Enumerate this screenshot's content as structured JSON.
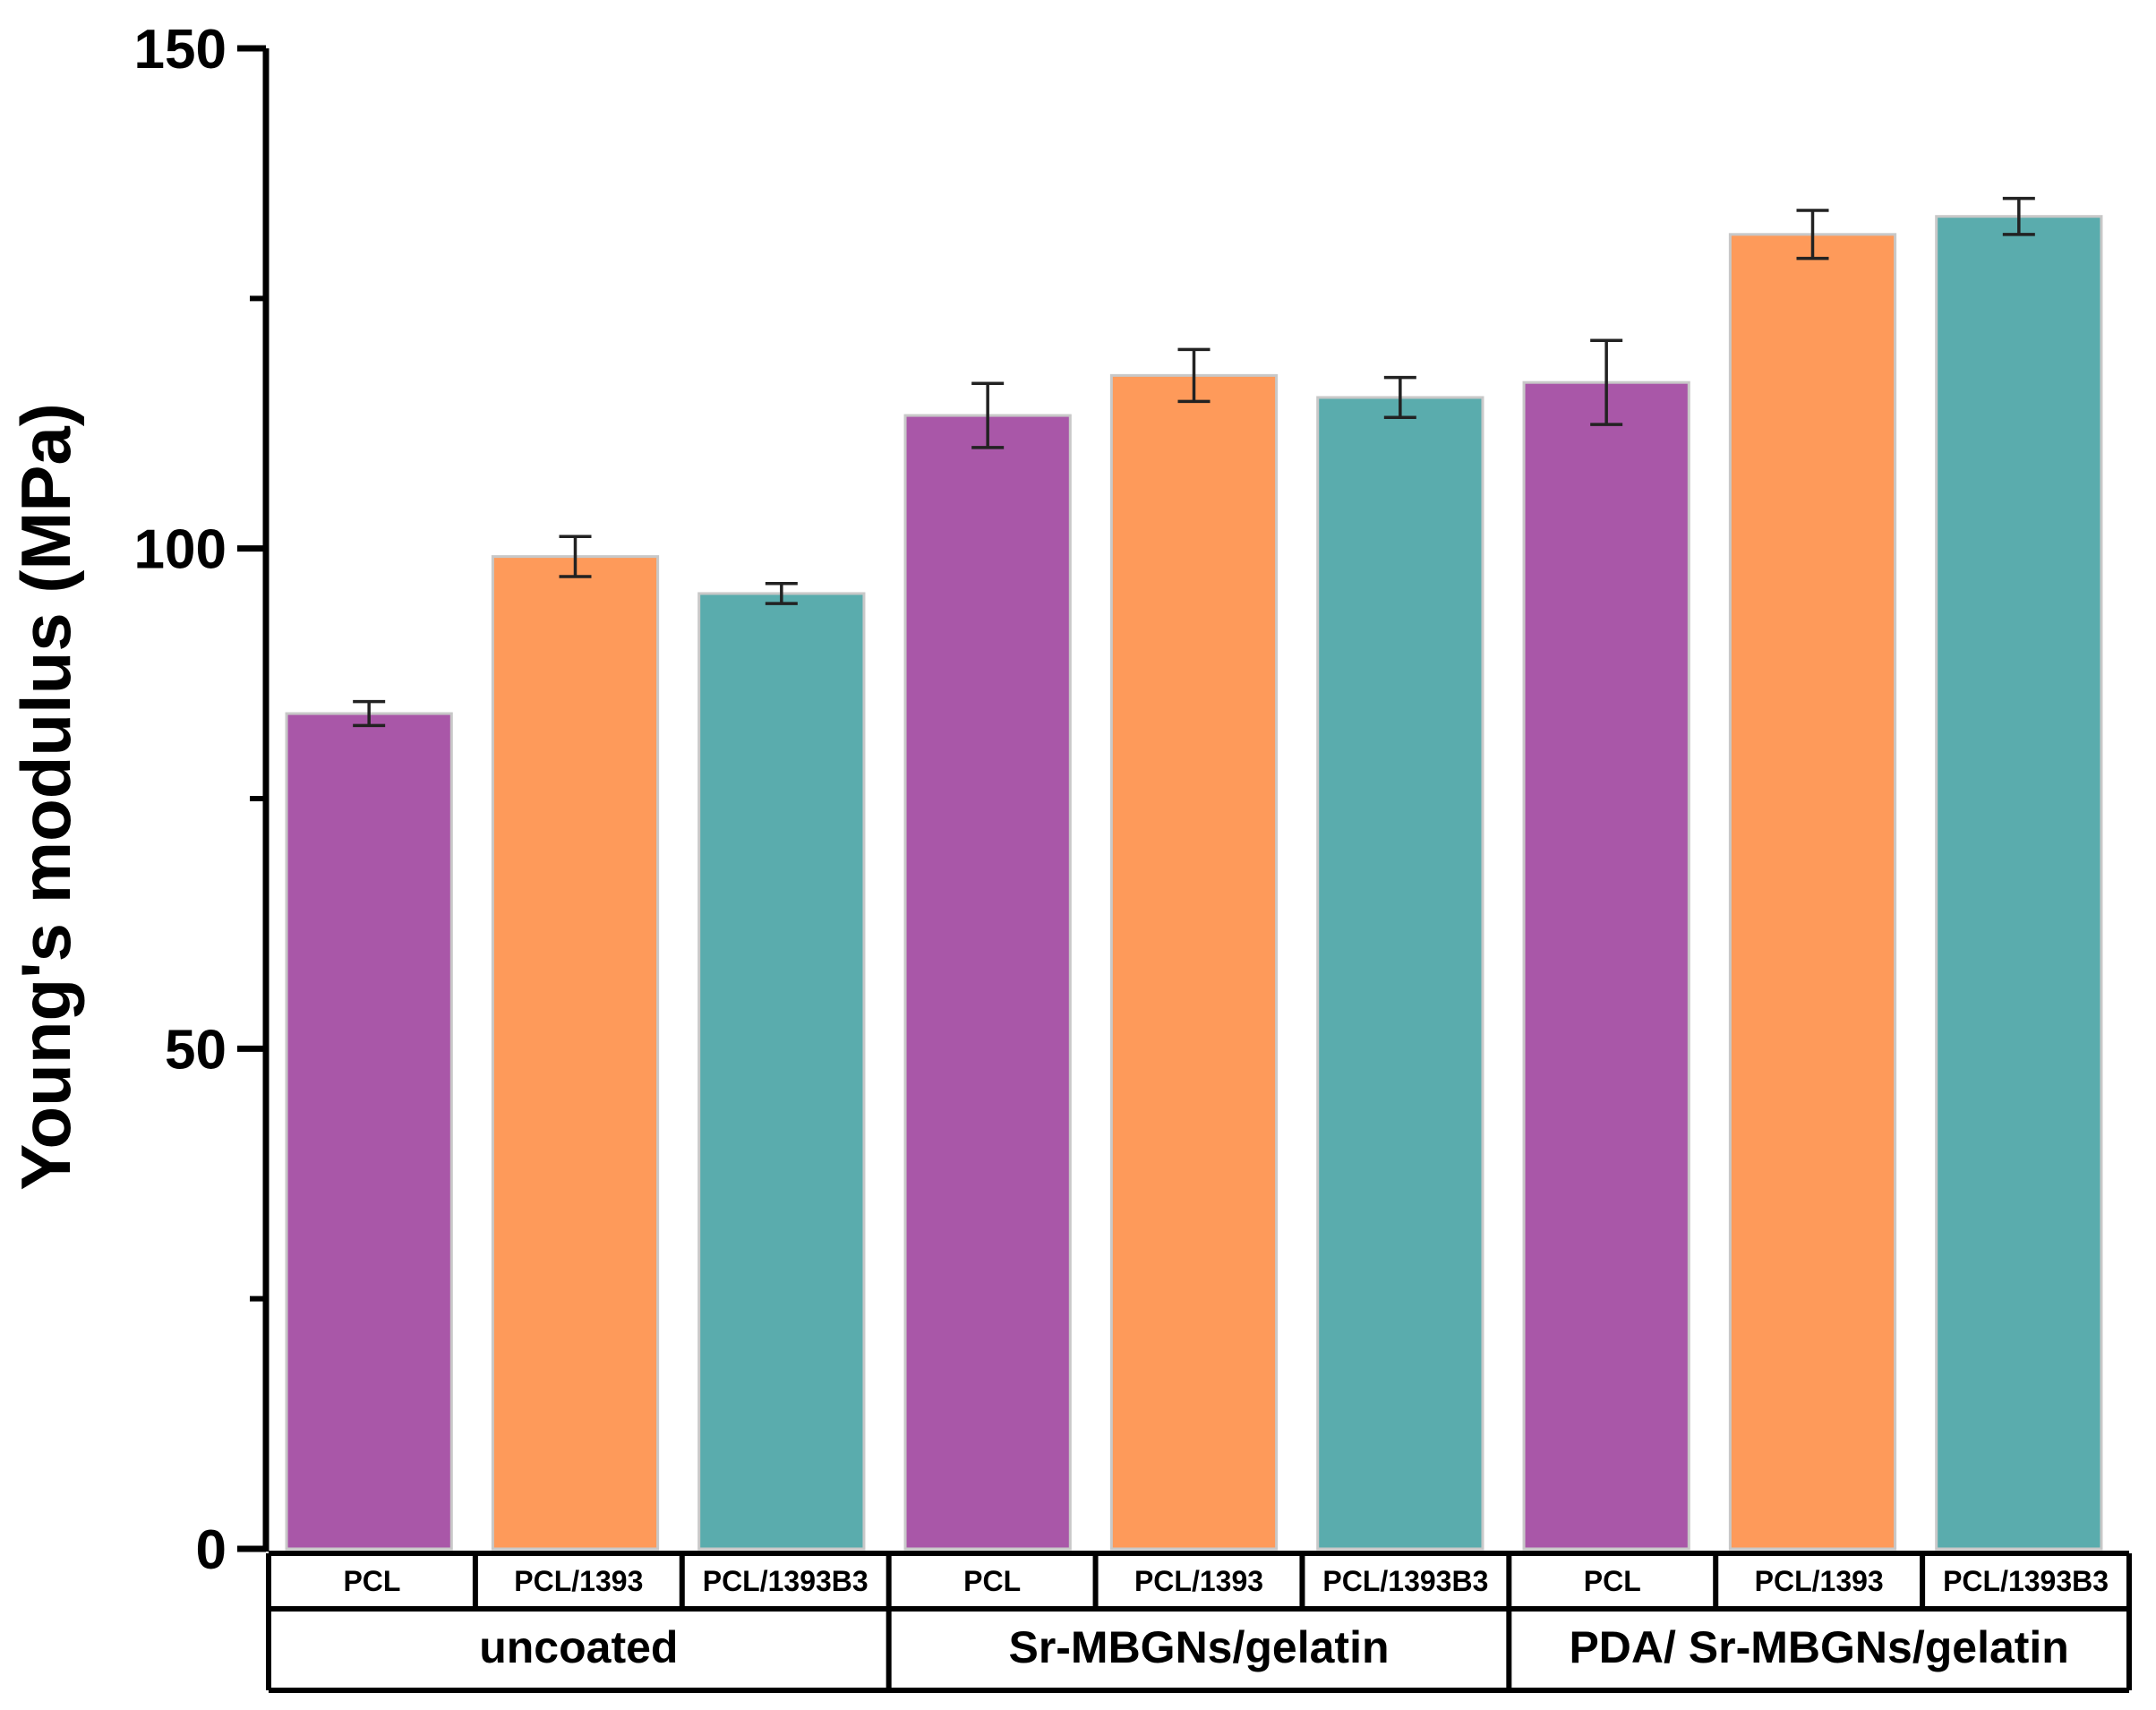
{
  "chart_data": {
    "type": "bar",
    "title": "",
    "xlabel": "",
    "ylabel": "Young's modulus (MPa)",
    "ylim": [
      0,
      150
    ],
    "yticks": [
      0,
      50,
      100,
      150
    ],
    "grid": false,
    "groups": [
      {
        "name": "uncoated",
        "categories": [
          "PCL",
          "PCL/1393",
          "PCL/1393B3"
        ]
      },
      {
        "name": "Sr-MBGNs/gelatin",
        "categories": [
          "PCL",
          "PCL/1393",
          "PCL/1393B3"
        ]
      },
      {
        "name": "PDA/ Sr-MBGNs/gelatin",
        "categories": [
          "PCL",
          "PCL/1393",
          "PCL/1393B3"
        ]
      }
    ],
    "bars": [
      {
        "group": "uncoated",
        "category": "PCL",
        "value": 83.5,
        "error": 1.2,
        "color": "#a957a8"
      },
      {
        "group": "uncoated",
        "category": "PCL/1393",
        "value": 99.2,
        "error": 2.0,
        "color": "#fe9a5a"
      },
      {
        "group": "uncoated",
        "category": "PCL/1393B3",
        "value": 95.5,
        "error": 1.0,
        "color": "#5aacad"
      },
      {
        "group": "Sr-MBGNs/gelatin",
        "category": "PCL",
        "value": 113.3,
        "error": 3.2,
        "color": "#a957a8"
      },
      {
        "group": "Sr-MBGNs/gelatin",
        "category": "PCL/1393",
        "value": 117.3,
        "error": 2.6,
        "color": "#fe9a5a"
      },
      {
        "group": "Sr-MBGNs/gelatin",
        "category": "PCL/1393B3",
        "value": 115.1,
        "error": 2.0,
        "color": "#5aacad"
      },
      {
        "group": "PDA/ Sr-MBGNs/gelatin",
        "category": "PCL",
        "value": 116.6,
        "error": 4.2,
        "color": "#a957a8"
      },
      {
        "group": "PDA/ Sr-MBGNs/gelatin",
        "category": "PCL/1393",
        "value": 131.4,
        "error": 2.4,
        "color": "#fe9a5a"
      },
      {
        "group": "PDA/ Sr-MBGNs/gelatin",
        "category": "PCL/1393B3",
        "value": 133.2,
        "error": 1.8,
        "color": "#5aacad"
      }
    ]
  }
}
